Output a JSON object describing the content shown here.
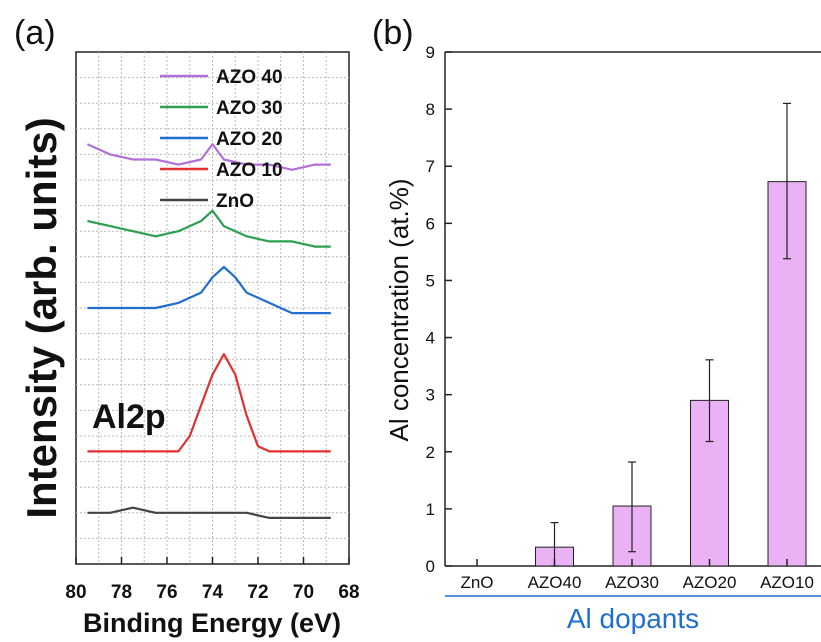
{
  "chart_data": [
    {
      "panel_label": "(a)",
      "type": "line",
      "xlabel": "Binding Energy (eV)",
      "ylabel": "Intensity (arb. units)",
      "xlim": [
        80,
        68
      ],
      "x_ticks": [
        "80",
        "78",
        "76",
        "74",
        "72",
        "70",
        "68"
      ],
      "annotation": "Al2p",
      "grid": true,
      "legend_position": "top-right",
      "series": [
        {
          "name": "AZO 40",
          "color": "#b070d8",
          "x": [
            79.5,
            78.5,
            77.5,
            76.5,
            75.5,
            74.5,
            74.0,
            73.5,
            72.5,
            71.5,
            70.5,
            69.5,
            68.8
          ],
          "y": [
            0.82,
            0.8,
            0.79,
            0.79,
            0.78,
            0.79,
            0.82,
            0.79,
            0.78,
            0.78,
            0.77,
            0.78,
            0.78
          ]
        },
        {
          "name": "AZO 30",
          "color": "#2ca050",
          "x": [
            79.5,
            78.5,
            77.5,
            76.5,
            75.5,
            74.5,
            74.0,
            73.5,
            72.5,
            71.5,
            70.5,
            69.5,
            68.8
          ],
          "y": [
            0.67,
            0.66,
            0.65,
            0.64,
            0.65,
            0.67,
            0.69,
            0.66,
            0.64,
            0.63,
            0.63,
            0.62,
            0.62
          ]
        },
        {
          "name": "AZO 20",
          "color": "#1f6fd0",
          "x": [
            79.5,
            78.5,
            77.5,
            76.5,
            75.5,
            74.5,
            74.0,
            73.5,
            73.0,
            72.5,
            71.5,
            70.5,
            69.5,
            68.8
          ],
          "y": [
            0.5,
            0.5,
            0.5,
            0.5,
            0.51,
            0.53,
            0.56,
            0.58,
            0.56,
            0.53,
            0.51,
            0.49,
            0.49,
            0.49
          ]
        },
        {
          "name": "AZO 10",
          "color": "#e03030",
          "x": [
            79.5,
            78.5,
            77.5,
            76.5,
            75.5,
            75.0,
            74.5,
            74.0,
            73.5,
            73.0,
            72.5,
            72.0,
            71.5,
            70.5,
            69.5,
            68.8
          ],
          "y": [
            0.22,
            0.22,
            0.22,
            0.22,
            0.22,
            0.25,
            0.31,
            0.37,
            0.41,
            0.37,
            0.29,
            0.23,
            0.22,
            0.22,
            0.22,
            0.22
          ]
        },
        {
          "name": "ZnO",
          "color": "#444444",
          "x": [
            79.5,
            78.5,
            77.5,
            76.5,
            75.5,
            74.5,
            73.5,
            72.5,
            71.5,
            70.5,
            69.5,
            68.8
          ],
          "y": [
            0.1,
            0.1,
            0.11,
            0.1,
            0.1,
            0.1,
            0.1,
            0.1,
            0.09,
            0.09,
            0.09,
            0.09
          ]
        }
      ]
    },
    {
      "panel_label": "(b)",
      "type": "bar",
      "xlabel": "Al dopants",
      "ylabel": "Al concentration (at.%)",
      "ylim": [
        0,
        9
      ],
      "y_ticks": [
        "0",
        "1",
        "2",
        "3",
        "4",
        "5",
        "6",
        "7",
        "8",
        "9"
      ],
      "categories": [
        "ZnO",
        "AZO40",
        "AZO30",
        "AZO20",
        "AZO10"
      ],
      "values": [
        0,
        0.33,
        1.05,
        2.9,
        6.73
      ],
      "error_low": [
        0,
        0.33,
        0.8,
        0.72,
        1.35
      ],
      "error_high": [
        0,
        0.43,
        0.77,
        0.71,
        1.37
      ],
      "bar_color": "#ebb1f5",
      "bar_edge_color": "#222222",
      "xlabel_color": "#1f6fd0"
    }
  ]
}
